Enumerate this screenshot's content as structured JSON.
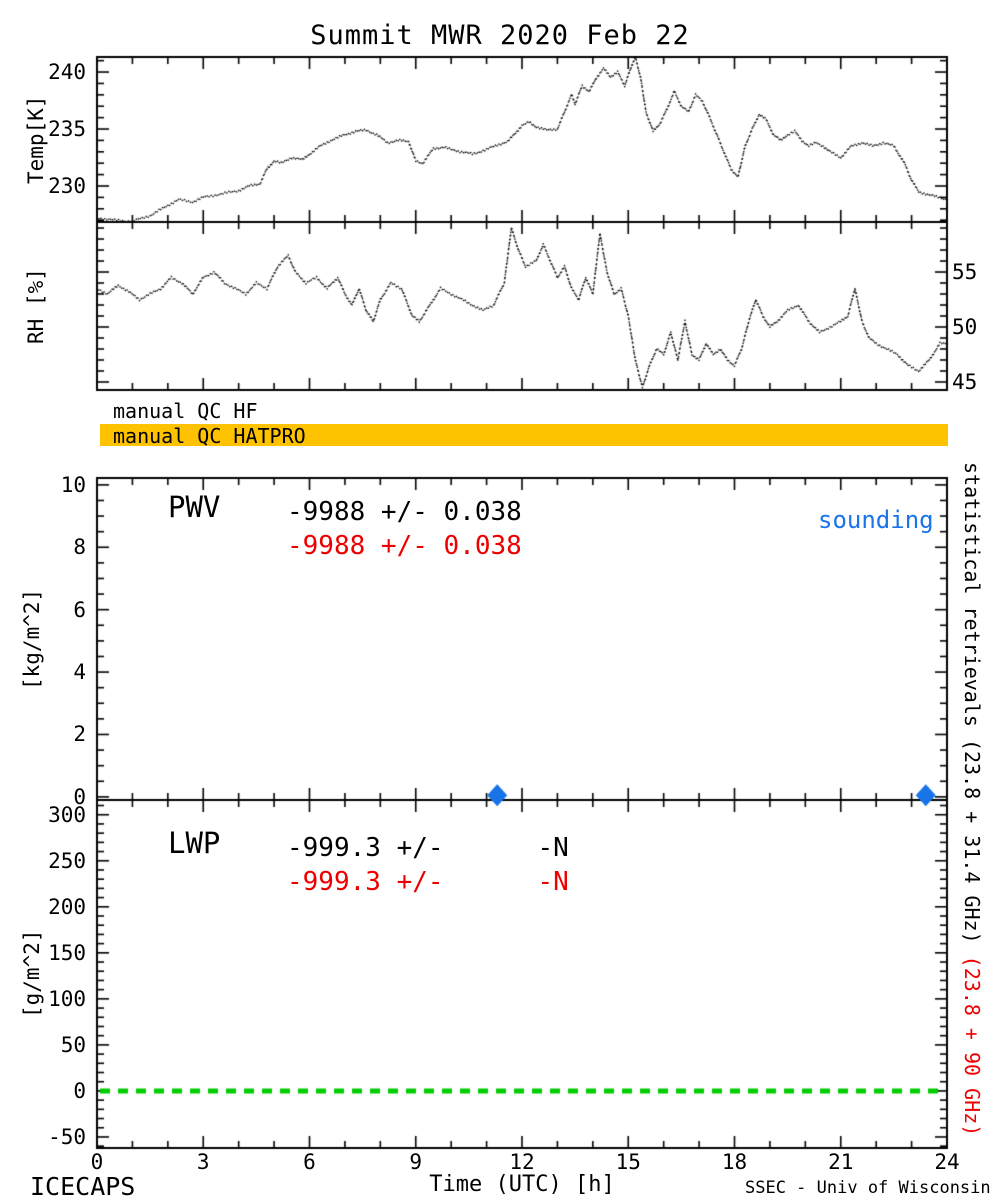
{
  "title": "Summit MWR 2020 Feb 22",
  "colors": {
    "red": "#EE0000",
    "blue": "#1874E8",
    "green": "#00CC00",
    "orange": "#FFC200",
    "black": "#000000"
  },
  "qc": {
    "hf_label": "manual QC HF",
    "hatpro_label": "manual QC HATPRO"
  },
  "right_note": {
    "black": "statistical retrievals (23.8 + 31.4 GHz)",
    "red": " (23.8 + 90 GHz)"
  },
  "footer": {
    "left": "ICECAPS",
    "right": "SSEC - Univ of Wisconsin"
  },
  "xaxis": {
    "label": "Time (UTC) [h]",
    "xlim": [
      0,
      24
    ],
    "ticks": [
      0,
      3,
      6,
      9,
      12,
      15,
      18,
      21,
      24
    ],
    "minor_step": 1
  },
  "chart_data": [
    {
      "id": "temp",
      "type": "line",
      "style": "dotted",
      "ylabel": "Temp[K]",
      "yticks": [
        230,
        235,
        240
      ],
      "ytick_side": "left",
      "minor_step": 1,
      "ylim": [
        226.84,
        241.32
      ],
      "x": [
        0,
        0.5,
        1,
        1.5,
        2,
        2.3,
        2.7,
        3,
        3.5,
        4,
        4.3,
        4.6,
        4.8,
        5,
        5.2,
        5.5,
        5.8,
        6,
        6.3,
        6.6,
        7,
        7.3,
        7.6,
        7.9,
        8.2,
        8.5,
        8.8,
        9,
        9.2,
        9.5,
        9.8,
        10,
        10.3,
        10.6,
        11,
        11.3,
        11.6,
        12,
        12.2,
        12.4,
        12.7,
        13,
        13.2,
        13.4,
        13.5,
        13.7,
        13.9,
        14.1,
        14.3,
        14.5,
        14.7,
        14.9,
        15.1,
        15.2,
        15.35,
        15.5,
        15.7,
        15.9,
        16.1,
        16.3,
        16.5,
        16.7,
        16.9,
        17.1,
        17.3,
        17.5,
        17.7,
        17.9,
        18.1,
        18.3,
        18.5,
        18.7,
        18.9,
        19.1,
        19.3,
        19.5,
        19.7,
        19.9,
        20.1,
        20.3,
        20.5,
        20.7,
        21,
        21.3,
        21.6,
        21.9,
        22.2,
        22.5,
        22.8,
        23,
        23.2,
        23.5,
        23.8,
        24
      ],
      "y": [
        227.2,
        227.0,
        226.9,
        227.4,
        228.3,
        228.8,
        228.6,
        229.0,
        229.3,
        229.6,
        230.0,
        230.2,
        231.5,
        232.2,
        232.0,
        232.5,
        232.3,
        232.8,
        233.5,
        234.0,
        234.5,
        234.8,
        234.9,
        234.5,
        233.8,
        234.0,
        233.9,
        232.2,
        232.0,
        233.3,
        233.4,
        233.2,
        233.0,
        232.8,
        233.2,
        233.6,
        233.9,
        235.3,
        235.6,
        235.2,
        234.9,
        235.0,
        236.5,
        238.0,
        237.2,
        238.8,
        238.3,
        239.5,
        240.3,
        239.6,
        240.0,
        238.8,
        240.6,
        241.3,
        239.5,
        236.5,
        234.8,
        235.5,
        236.8,
        238.3,
        237.0,
        236.5,
        238.0,
        237.4,
        236.0,
        234.5,
        233.0,
        231.5,
        230.8,
        233.5,
        235.0,
        236.3,
        235.8,
        234.5,
        234.0,
        234.5,
        234.8,
        234.0,
        233.5,
        233.8,
        233.5,
        233.0,
        232.5,
        233.5,
        233.8,
        233.5,
        233.8,
        233.5,
        232.0,
        230.5,
        229.5,
        229.2,
        229.0,
        228.8
      ]
    },
    {
      "id": "rh",
      "type": "line",
      "style": "dotted",
      "ylabel": "RH [%]",
      "yticks": [
        45,
        50,
        55
      ],
      "ytick_side": "right",
      "minor_step": 1,
      "ylim": [
        44.27,
        59.55
      ],
      "x": [
        0,
        0.3,
        0.6,
        0.9,
        1.2,
        1.5,
        1.8,
        2.1,
        2.4,
        2.7,
        3,
        3.3,
        3.6,
        3.9,
        4.2,
        4.5,
        4.8,
        5.1,
        5.4,
        5.6,
        5.9,
        6.2,
        6.5,
        6.8,
        7,
        7.2,
        7.4,
        7.6,
        7.8,
        8,
        8.3,
        8.6,
        8.9,
        9.1,
        9.4,
        9.7,
        10,
        10.3,
        10.6,
        10.9,
        11.2,
        11.5,
        11.7,
        11.9,
        12.1,
        12.4,
        12.6,
        12.8,
        13,
        13.2,
        13.4,
        13.6,
        13.8,
        14,
        14.2,
        14.4,
        14.6,
        14.8,
        15,
        15.2,
        15.4,
        15.6,
        15.8,
        16,
        16.2,
        16.4,
        16.6,
        16.8,
        17,
        17.2,
        17.4,
        17.6,
        17.8,
        18,
        18.2,
        18.4,
        18.6,
        18.8,
        19,
        19.2,
        19.5,
        19.8,
        20.1,
        20.4,
        20.7,
        21,
        21.2,
        21.4,
        21.6,
        21.8,
        22,
        22.3,
        22.6,
        22.9,
        23.2,
        23.5,
        23.8,
        24
      ],
      "y": [
        53.5,
        53.0,
        53.8,
        53.2,
        52.5,
        53.0,
        53.5,
        54.5,
        54.0,
        53.0,
        54.5,
        55.0,
        54.0,
        53.5,
        53.0,
        54.0,
        53.5,
        55.5,
        56.5,
        55.0,
        54.0,
        54.5,
        53.5,
        54.5,
        53.0,
        52.0,
        53.5,
        51.5,
        50.5,
        52.5,
        54.0,
        53.5,
        51.0,
        50.5,
        52.0,
        53.5,
        53.0,
        52.5,
        52.0,
        51.5,
        52.0,
        54.0,
        59.0,
        57.0,
        55.5,
        56.0,
        57.5,
        56.0,
        54.5,
        55.5,
        53.5,
        52.5,
        54.5,
        53.0,
        58.5,
        55.0,
        53.0,
        53.5,
        51.0,
        47.0,
        44.5,
        46.5,
        48.0,
        47.5,
        49.5,
        47.0,
        50.5,
        47.5,
        47.0,
        48.5,
        47.5,
        48.0,
        47.0,
        46.5,
        48.0,
        50.5,
        52.5,
        51.0,
        50.0,
        50.5,
        51.5,
        52.0,
        50.5,
        49.5,
        50.0,
        50.5,
        51.0,
        53.5,
        50.5,
        49.0,
        48.5,
        48.0,
        47.5,
        46.5,
        46.0,
        47.0,
        48.5,
        48.5
      ]
    },
    {
      "id": "pwv",
      "type": "scatter",
      "ylabel": "[kg/m^2]",
      "yticks": [
        0,
        2,
        4,
        6,
        8,
        10
      ],
      "ytick_side": "left",
      "minor_step": 0.5,
      "ylim": [
        -0.1,
        10.22
      ],
      "series": [
        {
          "name": "sounding",
          "marker": "diamond",
          "color": "blue",
          "x": [
            11.3,
            23.4
          ],
          "y": [
            0.05,
            0.05
          ]
        }
      ],
      "annotations": {
        "label": "PWV",
        "stat_black": "-9988 +/- 0.038",
        "stat_red": "-9988 +/- 0.038",
        "legend": "sounding"
      }
    },
    {
      "id": "lwp",
      "type": "line",
      "ylabel": "[g/m^2]",
      "yticks": [
        -50,
        0,
        50,
        100,
        150,
        200,
        250,
        300
      ],
      "ytick_side": "left",
      "minor_step": 10,
      "ylim": [
        -62,
        316
      ],
      "x": [],
      "y": [],
      "zero_line": {
        "value": 0,
        "style": "dashed",
        "color": "green"
      },
      "annotations": {
        "label": "LWP",
        "stat_black": "-999.3 +/-      -N",
        "stat_red": "-999.3 +/-      -N"
      }
    }
  ]
}
